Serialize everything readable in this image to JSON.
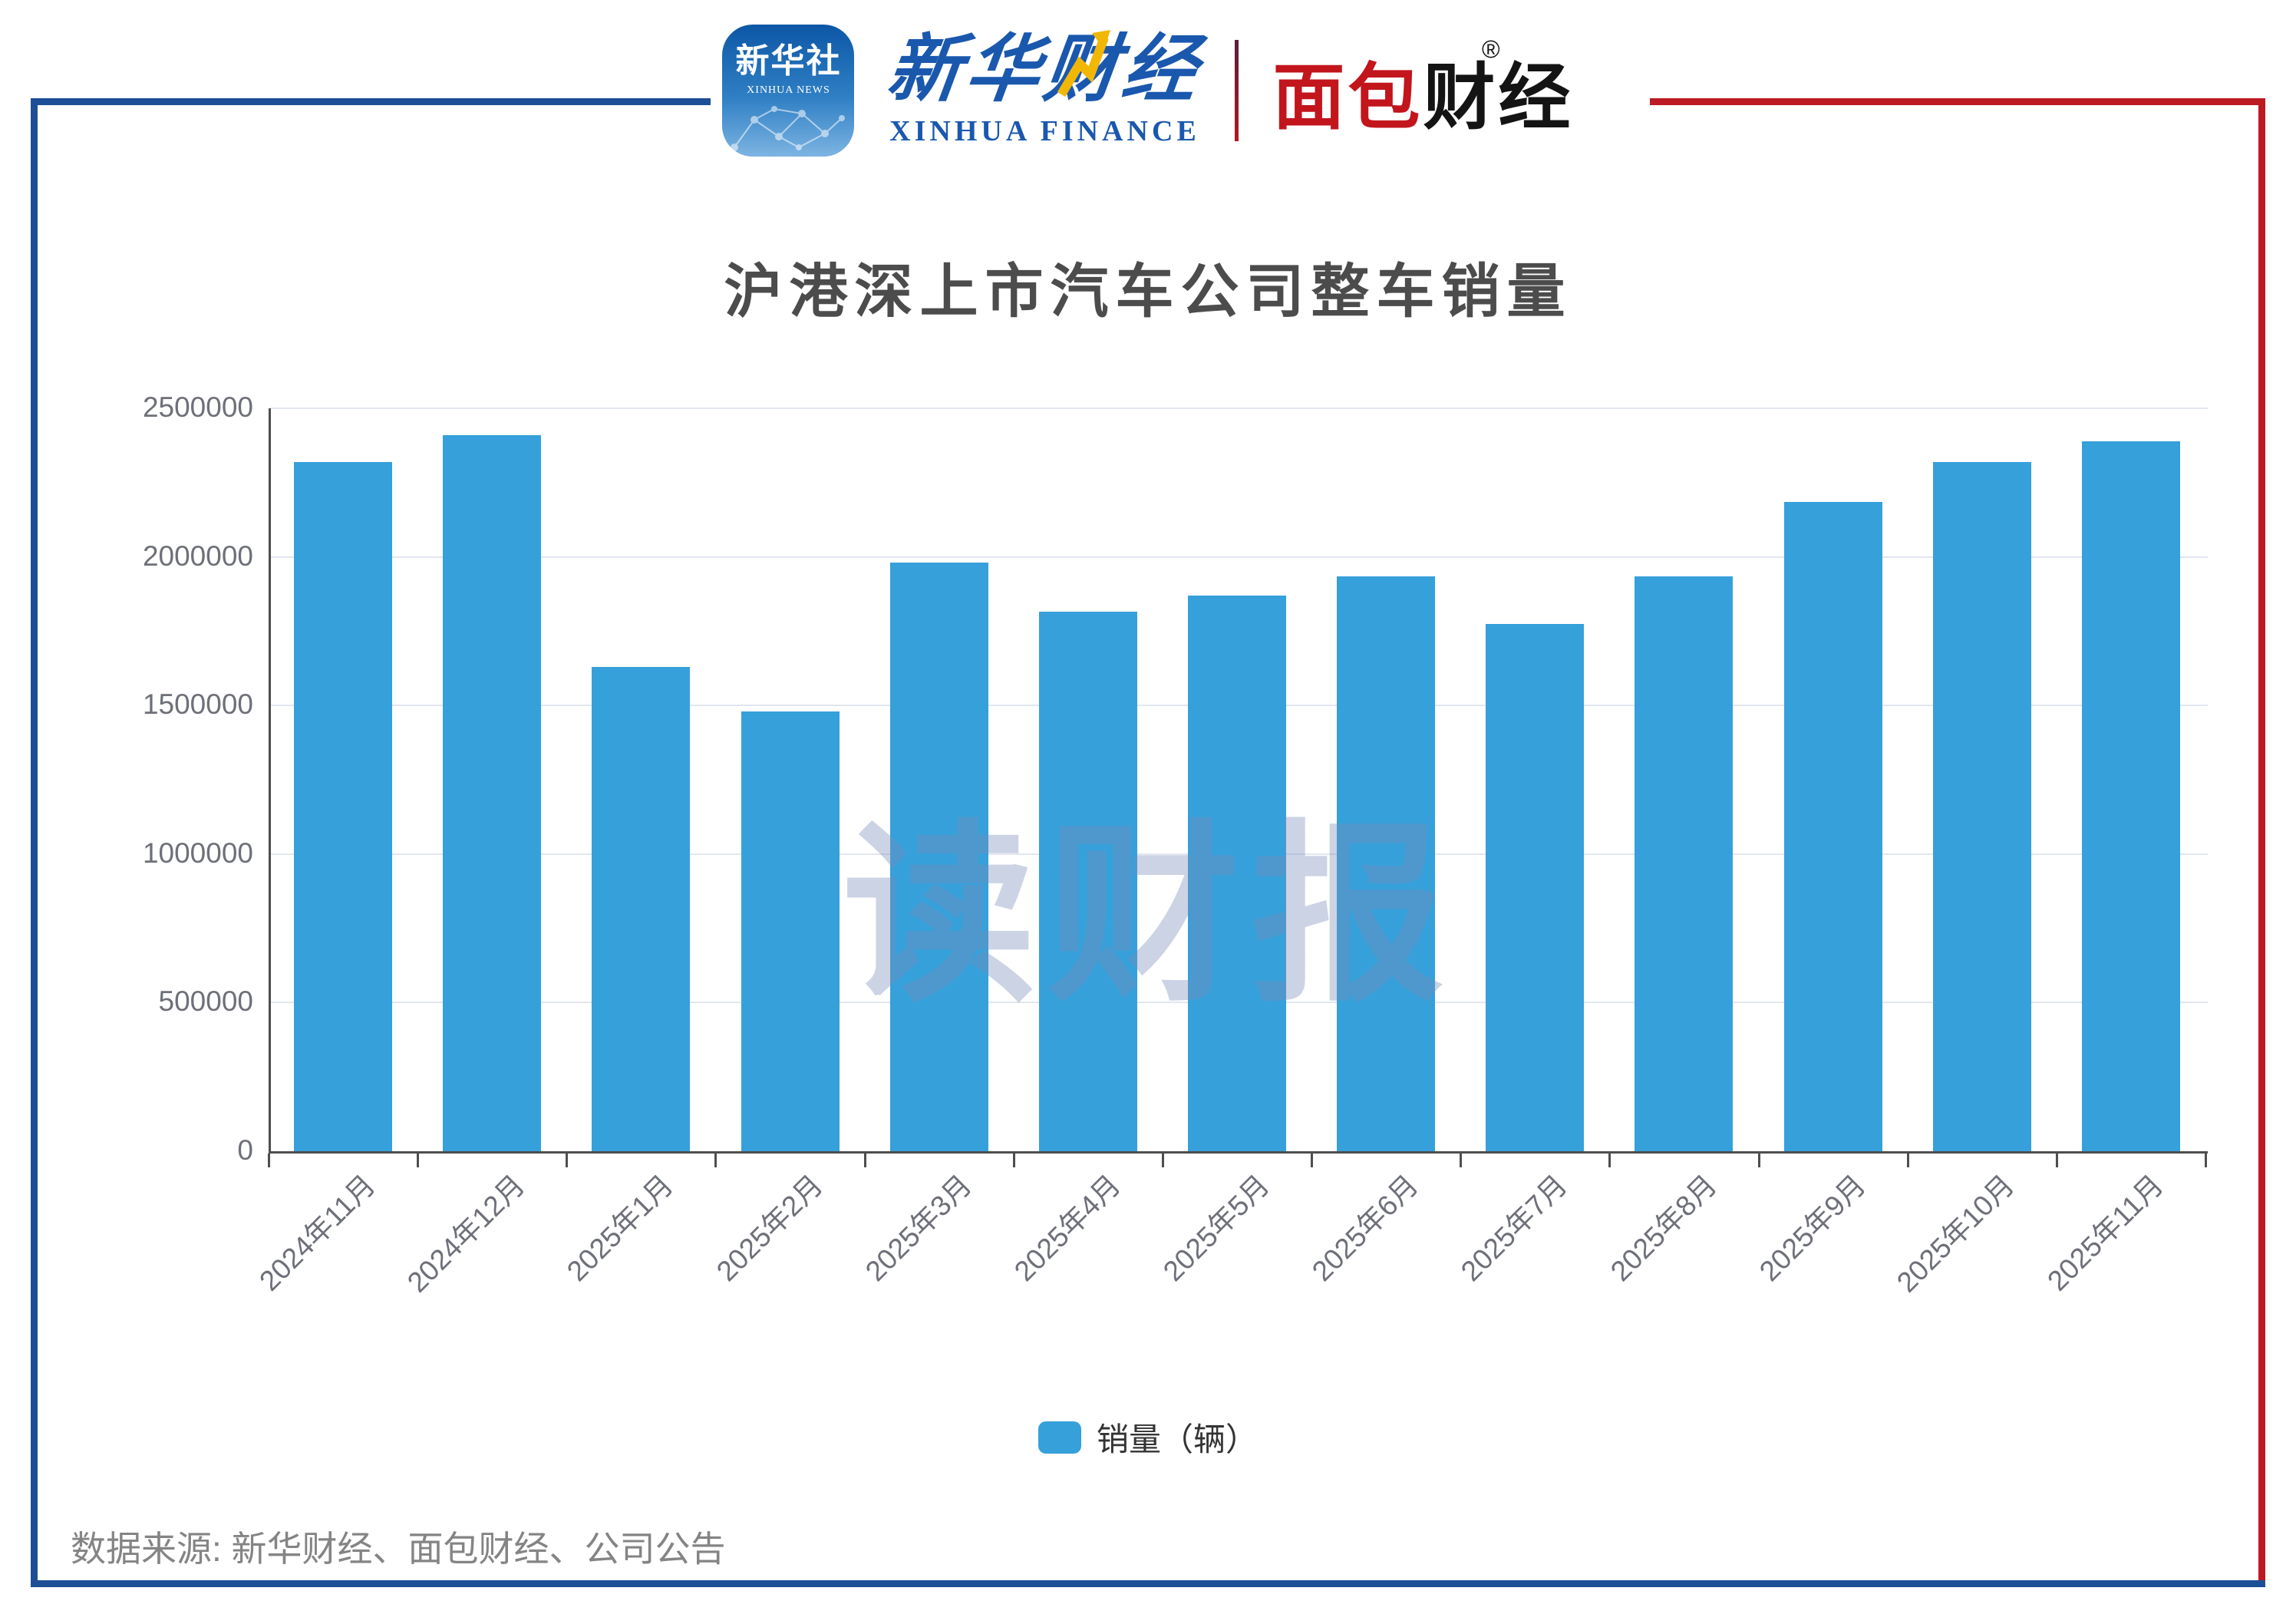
{
  "page": {
    "title": "沪港深上市汽车公司整车销量",
    "source_note": "数据来源: 新华财经、面包财经、公司公告",
    "watermark": "读财报"
  },
  "header": {
    "xinhua_news_icon": {
      "cn": "新华社",
      "en": "XINHUA NEWS"
    },
    "xinhua_finance": {
      "cn": "新华财经",
      "en": "XINHUA FINANCE"
    },
    "mianbao_finance": {
      "part_red": "面包",
      "part_black": "财经",
      "reg_mark": "®"
    }
  },
  "legend": {
    "label": "销量（辆）"
  },
  "colors": {
    "bar": "#36a0da",
    "frame_blue": "#1d4f96",
    "frame_red": "#bd1a22",
    "axis": "#4e4e4e",
    "gridline": "#e2e6f0",
    "tick_label": "#6e7079",
    "title_text": "#4c4c4c",
    "source_text": "#848484",
    "xinhua_blue": "#1a58ae",
    "mianbao_red": "#c2151c"
  },
  "chart_data": {
    "type": "bar",
    "title": "沪港深上市汽车公司整车销量",
    "categories": [
      "2024年11月",
      "2024年12月",
      "2025年1月",
      "2025年2月",
      "2025年3月",
      "2025年4月",
      "2025年5月",
      "2025年6月",
      "2025年7月",
      "2025年8月",
      "2025年9月",
      "2025年10月",
      "2025年11月"
    ],
    "series": [
      {
        "name": "销量（辆）",
        "values": [
          2320000,
          2410000,
          1630000,
          1480000,
          1980000,
          1815000,
          1870000,
          1935000,
          1775000,
          1935000,
          2185000,
          2320000,
          2390000
        ]
      }
    ],
    "xlabel": "",
    "ylabel": "",
    "ylim": [
      0,
      2500000
    ],
    "yticks": [
      0,
      500000,
      1000000,
      1500000,
      2000000,
      2500000
    ],
    "grid": true,
    "legend_position": "bottom",
    "x_label_rotation_deg": -45
  }
}
